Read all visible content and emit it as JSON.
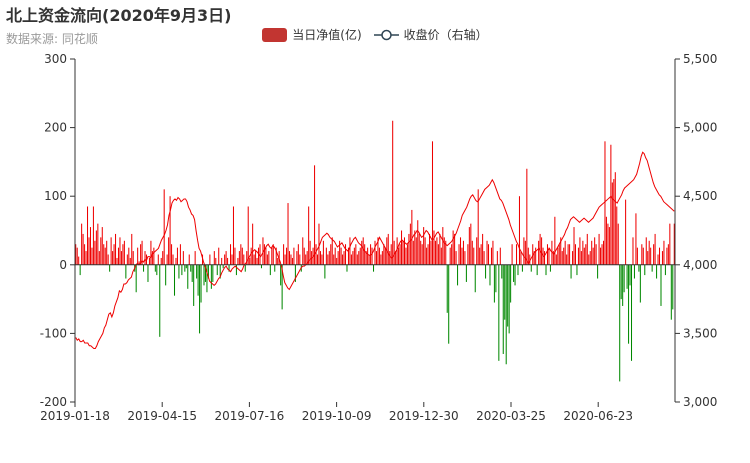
{
  "title": "北上资金流向(2020年9月3日)",
  "subtitle": "数据来源: 同花顺",
  "legend": {
    "bar_label": "当日净值(亿)",
    "line_label": "收盘价（右轴）"
  },
  "colors": {
    "positive_bar": "#ee0000",
    "negative_bar": "#008800",
    "line": "#ee0000",
    "legend_bar": "#c23531",
    "legend_line": "#2f4554",
    "axis": "#333333"
  },
  "chart_data": {
    "type": "bar",
    "title": "北上资金流向(2020年9月3日)",
    "y_left": {
      "min": -200,
      "max": 300,
      "ticks": [
        "300",
        "200",
        "100",
        "0",
        "-100",
        "-200"
      ]
    },
    "y_right": {
      "min": 3000,
      "max": 5500,
      "ticks": [
        "5,500",
        "5,000",
        "4,500",
        "4,000",
        "3,500",
        "3,000"
      ]
    },
    "x_tick_labels": [
      "2019-01-18",
      "2019-04-15",
      "2019-07-16",
      "2019-10-09",
      "2019-12-30",
      "2020-03-25",
      "2020-06-23"
    ],
    "series": [
      {
        "name": "当日净值(亿)",
        "type": "bar",
        "y_axis": "left",
        "values": [
          30,
          25,
          12,
          -15,
          60,
          45,
          30,
          20,
          85,
          40,
          55,
          25,
          85,
          35,
          50,
          60,
          20,
          40,
          55,
          30,
          25,
          35,
          15,
          -10,
          40,
          20,
          30,
          45,
          10,
          25,
          40,
          20,
          30,
          35,
          -20,
          15,
          25,
          10,
          45,
          20,
          -10,
          -40,
          25,
          5,
          30,
          35,
          -10,
          20,
          15,
          -25,
          10,
          35,
          20,
          25,
          -10,
          -15,
          15,
          -105,
          10,
          20,
          110,
          -30,
          15,
          40,
          100,
          30,
          15,
          -45,
          10,
          25,
          -20,
          30,
          -15,
          20,
          -10,
          -5,
          -35,
          15,
          -10,
          -25,
          -60,
          20,
          -20,
          -45,
          -100,
          -55,
          15,
          -30,
          -25,
          -40,
          -20,
          15,
          -35,
          -25,
          20,
          10,
          -15,
          25,
          -20,
          10,
          -5,
          15,
          20,
          10,
          -10,
          30,
          15,
          85,
          25,
          -15,
          10,
          20,
          30,
          25,
          15,
          -10,
          20,
          85,
          10,
          25,
          60,
          15,
          20,
          10,
          25,
          30,
          -5,
          40,
          30,
          25,
          15,
          20,
          -15,
          25,
          30,
          -10,
          25,
          10,
          20,
          -30,
          -65,
          30,
          15,
          25,
          90,
          20,
          15,
          10,
          25,
          -25,
          20,
          30,
          15,
          -10,
          40,
          25,
          15,
          20,
          85,
          35,
          20,
          25,
          145,
          30,
          15,
          60,
          20,
          15,
          35,
          -20,
          25,
          15,
          20,
          30,
          40,
          15,
          25,
          10,
          20,
          35,
          25,
          15,
          20,
          30,
          -10,
          25,
          40,
          15,
          20,
          25,
          30,
          15,
          20,
          25,
          35,
          40,
          30,
          20,
          25,
          15,
          30,
          25,
          -10,
          35,
          20,
          40,
          25,
          15,
          20,
          30,
          25,
          40,
          45,
          20,
          30,
          210,
          35,
          20,
          40,
          25,
          30,
          50,
          35,
          40,
          25,
          30,
          45,
          60,
          80,
          35,
          50,
          40,
          65,
          45,
          35,
          30,
          55,
          40,
          25,
          30,
          45,
          35,
          180,
          50,
          35,
          40,
          30,
          45,
          25,
          55,
          40,
          35,
          -70,
          -115,
          25,
          30,
          50,
          45,
          20,
          -30,
          30,
          40,
          25,
          35,
          20,
          -25,
          30,
          55,
          60,
          35,
          25,
          -40,
          40,
          110,
          25,
          30,
          45,
          20,
          -20,
          35,
          30,
          -30,
          25,
          35,
          -55,
          -40,
          20,
          -140,
          25,
          -20,
          -130,
          -80,
          -145,
          -90,
          -100,
          -55,
          30,
          -25,
          -30,
          30,
          -15,
          100,
          20,
          -10,
          40,
          35,
          140,
          25,
          15,
          -10,
          30,
          20,
          25,
          -15,
          35,
          45,
          40,
          25,
          20,
          -15,
          30,
          25,
          -10,
          35,
          20,
          70,
          15,
          25,
          30,
          40,
          20,
          25,
          35,
          15,
          30,
          30,
          -20,
          20,
          55,
          30,
          -15,
          25,
          40,
          20,
          35,
          25,
          30,
          45,
          15,
          20,
          35,
          25,
          40,
          30,
          -20,
          45,
          25,
          30,
          35,
          180,
          70,
          60,
          55,
          175,
          120,
          125,
          135,
          85,
          60,
          -170,
          -50,
          -60,
          -40,
          95,
          -35,
          -115,
          -30,
          -140,
          40,
          -20,
          75,
          25,
          -10,
          -55,
          30,
          25,
          -15,
          40,
          20,
          35,
          25,
          -10,
          30,
          45,
          -20,
          15,
          25,
          -60,
          20,
          35,
          -15,
          25,
          30,
          60,
          -80,
          -65,
          60
        ]
      },
      {
        "name": "收盘价（右轴）",
        "type": "line",
        "y_axis": "right",
        "values": [
          3470,
          3450,
          3460,
          3440,
          3440,
          3450,
          3430,
          3430,
          3430,
          3410,
          3410,
          3400,
          3390,
          3390,
          3410,
          3440,
          3460,
          3480,
          3500,
          3540,
          3560,
          3600,
          3640,
          3650,
          3620,
          3650,
          3700,
          3730,
          3760,
          3810,
          3800,
          3820,
          3860,
          3860,
          3870,
          3890,
          3900,
          3910,
          3950,
          3970,
          4000,
          4010,
          4000,
          4010,
          4030,
          4020,
          4040,
          4030,
          4060,
          4060,
          4050,
          4080,
          4090,
          4100,
          4110,
          4120,
          4150,
          4180,
          4200,
          4220,
          4250,
          4290,
          4360,
          4400,
          4450,
          4470,
          4480,
          4470,
          4490,
          4480,
          4460,
          4470,
          4480,
          4480,
          4460,
          4420,
          4400,
          4370,
          4360,
          4330,
          4250,
          4180,
          4120,
          4100,
          4060,
          4020,
          3990,
          3950,
          3920,
          3880,
          3870,
          3860,
          3850,
          3860,
          3880,
          3900,
          3910,
          3940,
          3960,
          3980,
          3990,
          3970,
          3960,
          3950,
          3970,
          3980,
          3990,
          3980,
          3970,
          3960,
          3950,
          3970,
          4000,
          4010,
          4030,
          4050,
          4070,
          4090,
          4100,
          4110,
          4100,
          4090,
          4070,
          4060,
          4080,
          4100,
          4120,
          4140,
          4150,
          4130,
          4120,
          4140,
          4130,
          4110,
          4080,
          4050,
          4020,
          3980,
          3920,
          3870,
          3850,
          3830,
          3820,
          3840,
          3860,
          3880,
          3900,
          3920,
          3940,
          3960,
          3980,
          3990,
          3990,
          4000,
          4010,
          4030,
          4040,
          4050,
          4060,
          4080,
          4100,
          4120,
          4140,
          4170,
          4200,
          4210,
          4220,
          4230,
          4220,
          4200,
          4190,
          4180,
          4170,
          4150,
          4130,
          4140,
          4150,
          4160,
          4140,
          4120,
          4110,
          4100,
          4120,
          4150,
          4170,
          4190,
          4200,
          4180,
          4160,
          4150,
          4140,
          4120,
          4100,
          4090,
          4080,
          4070,
          4070,
          4080,
          4100,
          4130,
          4150,
          4170,
          4200,
          4180,
          4160,
          4140,
          4120,
          4100,
          4080,
          4060,
          4050,
          4060,
          4080,
          4100,
          4120,
          4150,
          4170,
          4180,
          4170,
          4160,
          4150,
          4160,
          4170,
          4180,
          4200,
          4220,
          4230,
          4250,
          4240,
          4220,
          4200,
          4210,
          4230,
          4250,
          4240,
          4220,
          4200,
          4180,
          4190,
          4210,
          4230,
          4240,
          4220,
          4200,
          4180,
          4160,
          4150,
          4140,
          4150,
          4160,
          4170,
          4190,
          4210,
          4230,
          4260,
          4290,
          4320,
          4360,
          4380,
          4400,
          4420,
          4450,
          4480,
          4500,
          4510,
          4490,
          4470,
          4460,
          4470,
          4490,
          4510,
          4530,
          4550,
          4560,
          4570,
          4580,
          4600,
          4620,
          4600,
          4570,
          4540,
          4510,
          4480,
          4470,
          4450,
          4420,
          4390,
          4360,
          4330,
          4290,
          4260,
          4230,
          4200,
          4170,
          4150,
          4120,
          4100,
          4080,
          4060,
          4050,
          4030,
          4010,
          4030,
          4050,
          4070,
          4090,
          4100,
          4110,
          4120,
          4100,
          4080,
          4060,
          4070,
          4090,
          4110,
          4120,
          4100,
          4090,
          4080,
          4100,
          4120,
          4140,
          4160,
          4180,
          4200,
          4220,
          4250,
          4270,
          4300,
          4330,
          4340,
          4350,
          4340,
          4330,
          4320,
          4310,
          4320,
          4330,
          4340,
          4330,
          4320,
          4310,
          4320,
          4330,
          4340,
          4360,
          4380,
          4400,
          4420,
          4430,
          4440,
          4450,
          4460,
          4470,
          4480,
          4490,
          4500,
          4480,
          4470,
          4460,
          4450,
          4470,
          4490,
          4510,
          4540,
          4560,
          4570,
          4580,
          4590,
          4600,
          4610,
          4620,
          4640,
          4660,
          4700,
          4740,
          4790,
          4820,
          4810,
          4780,
          4760,
          4720,
          4680,
          4640,
          4600,
          4570,
          4550,
          4530,
          4510,
          4500,
          4480,
          4460,
          4450,
          4440,
          4430,
          4420,
          4410,
          4400,
          4390
        ]
      }
    ]
  }
}
